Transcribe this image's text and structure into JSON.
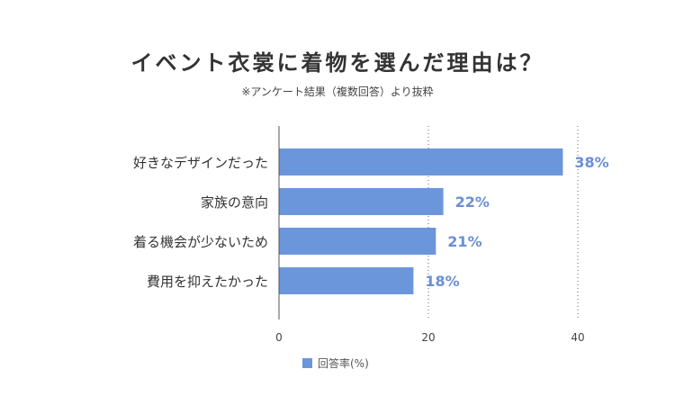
{
  "chart_data": {
    "type": "bar",
    "orientation": "horizontal",
    "title": "イベント衣裳に着物を選んだ理由は？",
    "subtitle": "※アンケート結果（複数回答）より抜粋",
    "categories": [
      "好きなデザインだった",
      "家族の意向",
      "着る機会が少ないため",
      "費用を抑えたかった"
    ],
    "series": [
      {
        "name": "回答率(%)",
        "values": [
          38,
          22,
          21,
          18
        ],
        "color": "#6b96db"
      }
    ],
    "value_labels": [
      "38%",
      "22%",
      "21%",
      "18%"
    ],
    "xlim": [
      0,
      40
    ],
    "x_ticks": [
      "0",
      "20",
      "40"
    ],
    "grid": "dotted vertical",
    "legend_position": "bottom-center",
    "label_color": "#6b8fd3"
  }
}
